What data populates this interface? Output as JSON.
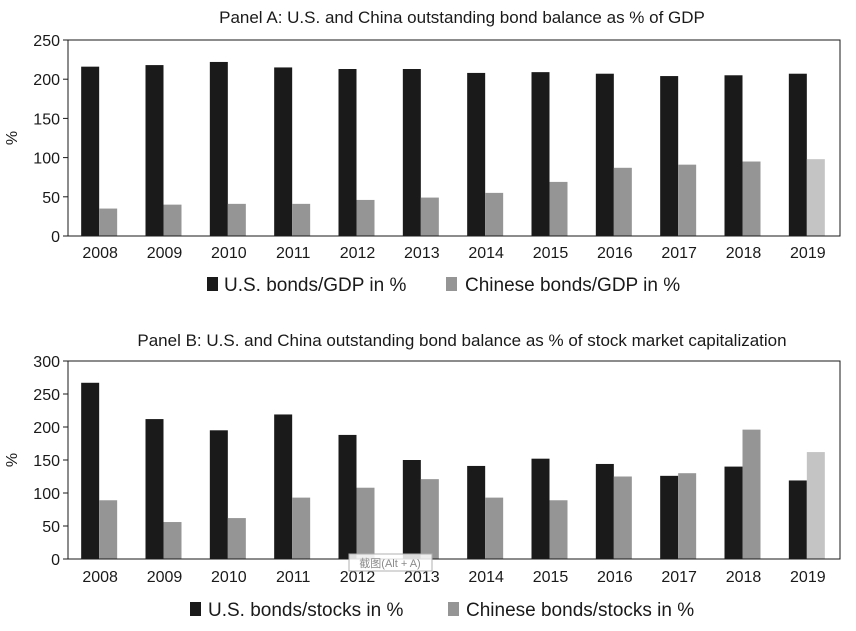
{
  "chart_data": [
    {
      "type": "bar",
      "title": "Panel A: U.S. and China outstanding bond balance as % of GDP",
      "ylabel": "%",
      "xlabel": "",
      "ylim": [
        0,
        250
      ],
      "yticks": [
        0,
        50,
        100,
        150,
        200,
        250
      ],
      "grid": false,
      "legend_placement": "bottom",
      "categories": [
        "2008",
        "2009",
        "2010",
        "2011",
        "2012",
        "2013",
        "2014",
        "2015",
        "2016",
        "2017",
        "2018",
        "2019"
      ],
      "series": [
        {
          "name": "U.S. bonds/GDP in %",
          "color": "#1a1a1a",
          "values": [
            216,
            218,
            222,
            215,
            213,
            213,
            208,
            209,
            207,
            204,
            205,
            207
          ]
        },
        {
          "name": "Chinese bonds/GDP in %",
          "color": "#959595",
          "last_color": "#c4c4c4",
          "values": [
            35,
            40,
            41,
            41,
            46,
            49,
            55,
            69,
            87,
            91,
            95,
            98
          ]
        }
      ]
    },
    {
      "type": "bar",
      "title": "Panel B: U.S. and China outstanding bond balance as % of stock market capitalization",
      "ylabel": "%",
      "xlabel": "",
      "ylim": [
        0,
        300
      ],
      "yticks": [
        0,
        50,
        100,
        150,
        200,
        250,
        300
      ],
      "grid": false,
      "legend_placement": "bottom",
      "categories": [
        "2008",
        "2009",
        "2010",
        "2011",
        "2012",
        "2013",
        "2014",
        "2015",
        "2016",
        "2017",
        "2018",
        "2019"
      ],
      "series": [
        {
          "name": "U.S. bonds/stocks in %",
          "color": "#1a1a1a",
          "values": [
            267,
            212,
            195,
            219,
            188,
            150,
            141,
            152,
            144,
            126,
            140,
            119
          ]
        },
        {
          "name": "Chinese bonds/stocks in %",
          "color": "#959595",
          "last_color": "#c4c4c4",
          "values": [
            89,
            56,
            62,
            93,
            108,
            121,
            93,
            89,
            125,
            130,
            196,
            162
          ]
        }
      ]
    }
  ],
  "overlay": {
    "text": "截图(Alt + A)"
  }
}
